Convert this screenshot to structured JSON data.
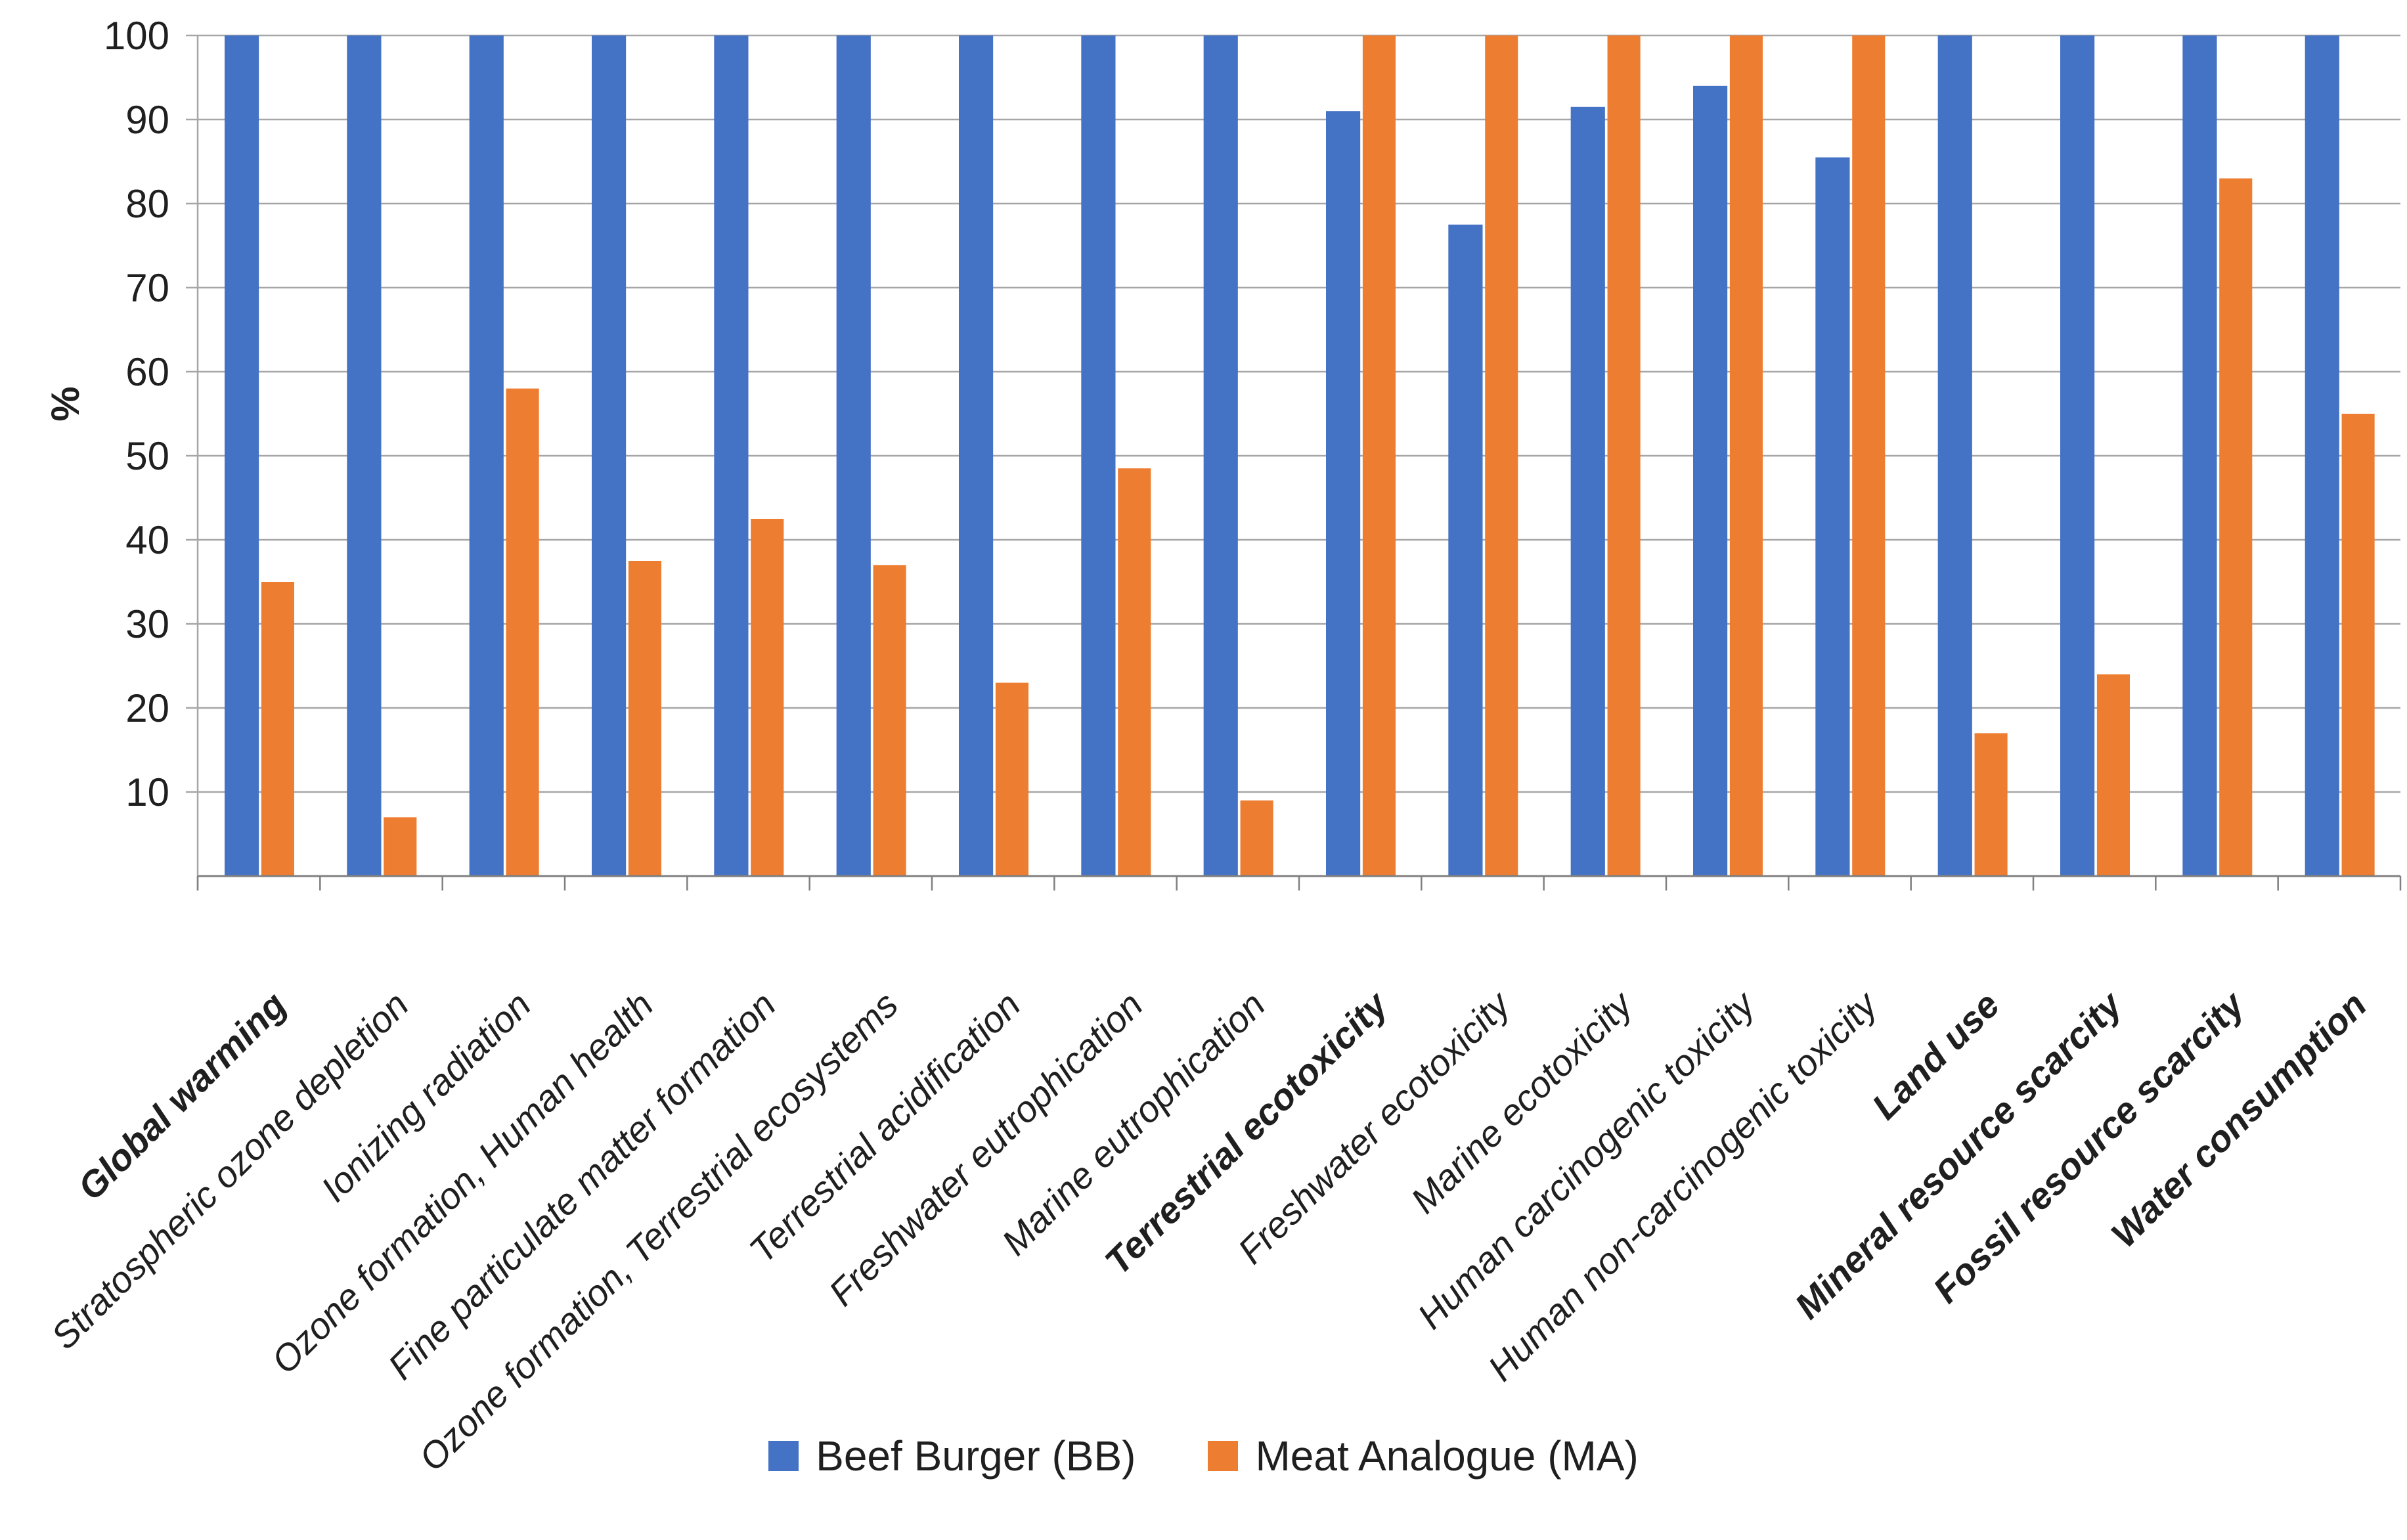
{
  "chart_data": {
    "type": "bar",
    "title": "",
    "xlabel": "",
    "ylabel": "%",
    "ylim": [
      0,
      100
    ],
    "yticks": [
      10,
      20,
      30,
      40,
      50,
      60,
      70,
      80,
      90,
      100
    ],
    "grid": true,
    "legend_position": "bottom",
    "categories": [
      "Global warming",
      "Stratospheric ozone depletion",
      "Ionizing radiation",
      "Ozone formation, Human health",
      "Fine particulate matter formation",
      "Ozone formation, Terrestrial ecosystems",
      "Terrestrial acidification",
      "Freshwater eutrophication",
      "Marine eutrophication",
      "Terrestrial ecotoxicity",
      "Freshwater ecotoxicity",
      "Marine ecotoxicity",
      "Human carcinogenic toxicity",
      "Human non-carcinogenic toxicity",
      "Land use",
      "Mineral resource scarcity",
      "Fossil resource scarcity",
      "Water consumption"
    ],
    "bold_category_flags": [
      true,
      false,
      false,
      false,
      false,
      false,
      false,
      false,
      false,
      true,
      false,
      false,
      false,
      false,
      true,
      true,
      true,
      true
    ],
    "series": [
      {
        "name": "Beef Burger (BB)",
        "color": "#4472C4",
        "values": [
          100,
          100,
          100,
          100,
          100,
          100,
          100,
          100,
          100,
          91,
          77.5,
          91.5,
          94,
          85.5,
          100,
          100,
          100,
          100
        ]
      },
      {
        "name": "Meat Analogue (MA)",
        "color": "#ED7D31",
        "values": [
          35,
          7,
          58,
          37.5,
          42.5,
          37,
          23,
          48.5,
          9,
          100,
          100,
          100,
          100,
          100,
          17,
          24,
          83,
          55
        ]
      }
    ]
  },
  "colors": {
    "gridline": "#a6a6a6",
    "axis": "#808080",
    "text": "#1f1f1f",
    "background": "#ffffff"
  }
}
